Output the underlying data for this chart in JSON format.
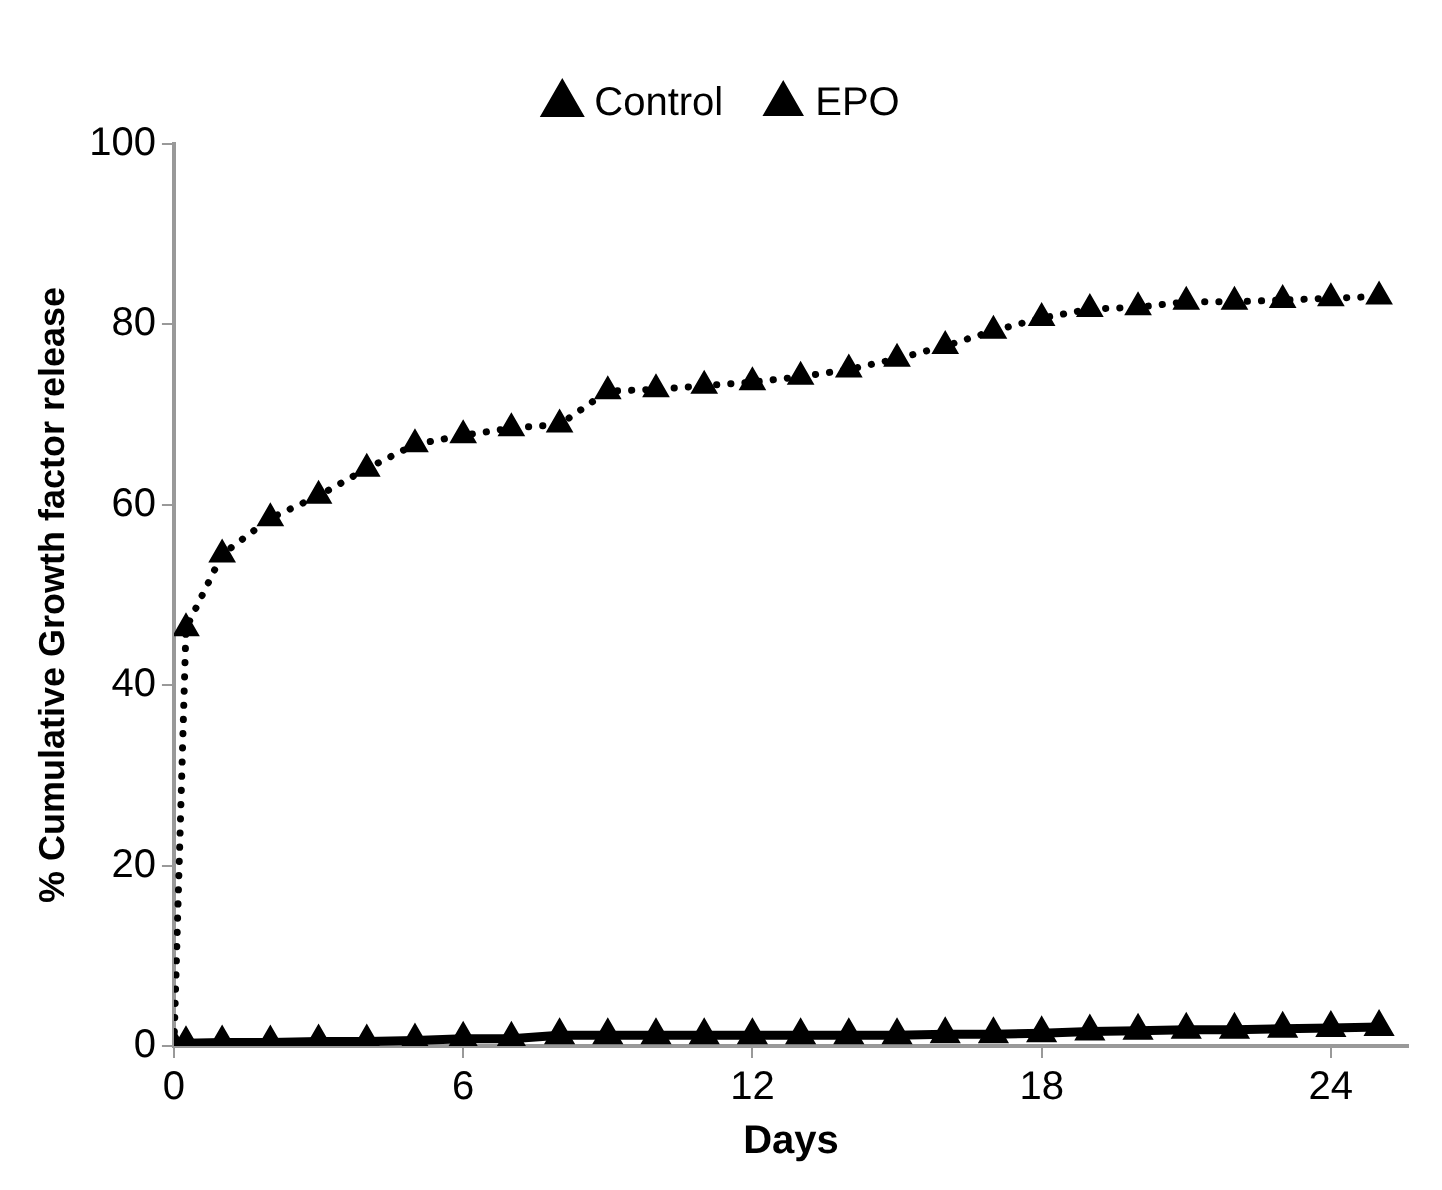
{
  "chart_data": {
    "type": "line",
    "xlabel": "Days",
    "ylabel": "% Cumulative Growth factor release",
    "xlim": [
      0,
      25.6
    ],
    "xticks": [
      0,
      6,
      12,
      18,
      24
    ],
    "ylim": [
      0,
      100
    ],
    "yticks": [
      0,
      20,
      40,
      60,
      80,
      100
    ],
    "grid": false,
    "legend": "top",
    "marker": "triangle",
    "series": [
      {
        "name": "Control",
        "color": "#000000",
        "line_style": "solid",
        "x": [
          0,
          0.25,
          1,
          2,
          3,
          4,
          5,
          6,
          7,
          8,
          9,
          10,
          11,
          12,
          13,
          14,
          15,
          16,
          17,
          18,
          19,
          20,
          21,
          22,
          23,
          24,
          25
        ],
        "values": [
          0,
          0.3,
          0.4,
          0.4,
          0.5,
          0.5,
          0.6,
          0.8,
          0.8,
          1.2,
          1.2,
          1.2,
          1.2,
          1.2,
          1.2,
          1.2,
          1.2,
          1.3,
          1.3,
          1.4,
          1.6,
          1.7,
          1.8,
          1.8,
          1.9,
          2.0,
          2.1
        ]
      },
      {
        "name": "EPO",
        "color": "#000000",
        "line_style": "dotted",
        "x": [
          0,
          0.25,
          1,
          2,
          3,
          4,
          5,
          6,
          7,
          8,
          9,
          10,
          11,
          12,
          13,
          14,
          15,
          16,
          17,
          18,
          19,
          20,
          21,
          22,
          23,
          24,
          25
        ],
        "values": [
          0,
          46.3,
          54.5,
          58.5,
          61,
          64,
          66.7,
          67.7,
          68.5,
          68.9,
          72.6,
          72.8,
          73.2,
          73.6,
          74.2,
          75,
          76.2,
          77.6,
          79.3,
          80.7,
          81.7,
          81.9,
          82.5,
          82.5,
          82.7,
          82.9,
          83.1
        ]
      }
    ]
  }
}
